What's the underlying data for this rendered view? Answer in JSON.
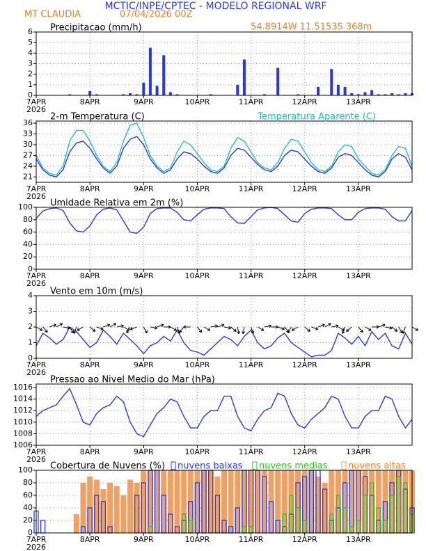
{
  "header": {
    "title": "MCTIC/INPE/CPTEC - MODELO REGIONAL WRF",
    "location": "MT CLAUDIA",
    "date": "07/04/2026 00Z",
    "coords": "54.8914W 11.5153S 368m"
  },
  "chart_data": [
    {
      "type": "bar",
      "title": "Precipitacao (mm/h)",
      "xtick_labels": [
        "7APR",
        "8APR",
        "9APR",
        "10APR",
        "11APR",
        "12APR",
        "13APR"
      ],
      "x_year": "2026",
      "ylim": [
        0,
        6
      ],
      "yticks": [
        0,
        1,
        2,
        3,
        4,
        5,
        6
      ],
      "grid": true,
      "series": [
        {
          "color": "#2838e8",
          "filled": true,
          "values": [
            0,
            0,
            0,
            0,
            0,
            0.1,
            0,
            0,
            0.4,
            0.1,
            0,
            0,
            0,
            0.1,
            0.2,
            0.1,
            1.2,
            4.5,
            0.9,
            3.8,
            0.3,
            0.1,
            0,
            0,
            0,
            0,
            0.1,
            0,
            0,
            0,
            1.0,
            3.4,
            0,
            0,
            0.1,
            0,
            2.6,
            0,
            0,
            0.1,
            0,
            0,
            0.8,
            0,
            2.5,
            1.0,
            0.8,
            0.2,
            0.1,
            0.3,
            0.5,
            0.1,
            0.1,
            0.2,
            0.1,
            0.2,
            0.2
          ]
        }
      ]
    },
    {
      "type": "line",
      "title": "2-m Temperatura (C)",
      "xtick_labels": [
        "7APR",
        "8APR",
        "9APR",
        "10APR",
        "11APR",
        "12APR",
        "13APR"
      ],
      "x_year": "2026",
      "ylim": [
        19.5,
        36.6
      ],
      "yticks": [
        21,
        24,
        27,
        30,
        33,
        36
      ],
      "grid": true,
      "series": [
        {
          "color": "#2838e8",
          "values": [
            26,
            23,
            21.5,
            21,
            23,
            28,
            30.5,
            31,
            29,
            26,
            23.5,
            22,
            24,
            29,
            31.5,
            32.3,
            30,
            26,
            23.5,
            22,
            23,
            26,
            28,
            27.5,
            26,
            24,
            22.5,
            22,
            23.5,
            27,
            29,
            28.5,
            26.5,
            24.5,
            23,
            22.5,
            24,
            27,
            28.5,
            28,
            26,
            24,
            22.5,
            22,
            23.5,
            26.5,
            27.5,
            27,
            25,
            23,
            21.5,
            21,
            22.5,
            26,
            27.5,
            26.5,
            23
          ]
        },
        {
          "name": "Temperatura Aparente (C)",
          "color": "#20c0c0",
          "values": [
            27,
            23.5,
            22,
            21.5,
            24,
            31,
            34,
            34,
            31,
            27,
            24,
            22.5,
            25,
            31,
            35.5,
            36,
            32,
            27,
            24,
            22.5,
            23.5,
            28,
            31,
            30,
            27.5,
            25,
            23,
            22.5,
            24,
            29,
            32,
            31,
            28,
            25,
            23.5,
            23,
            25,
            29,
            31.5,
            31,
            28,
            25,
            23,
            22.5,
            24,
            28,
            30,
            29.5,
            26,
            24,
            22,
            21.5,
            23,
            27,
            29.5,
            29,
            24
          ]
        }
      ]
    },
    {
      "type": "line",
      "title": "Umidade Relativa em 2m (%)",
      "xtick_labels": [
        "7APR",
        "8APR",
        "9APR",
        "10APR",
        "11APR",
        "12APR",
        "13APR"
      ],
      "x_year": "2026",
      "ylim": [
        0,
        100
      ],
      "yticks": [
        0,
        20,
        40,
        60,
        80,
        100
      ],
      "grid": true,
      "series": [
        {
          "color": "#2838e8",
          "values": [
            82,
            94,
            98,
            99,
            95,
            75,
            62,
            60,
            70,
            88,
            97,
            99,
            96,
            78,
            60,
            58,
            68,
            90,
            98,
            99,
            99,
            92,
            80,
            78,
            88,
            97,
            99,
            99,
            98,
            85,
            75,
            74,
            85,
            96,
            99,
            100,
            98,
            88,
            78,
            76,
            90,
            97,
            99,
            99,
            98,
            88,
            80,
            80,
            92,
            98,
            99,
            99,
            97,
            85,
            78,
            78,
            95
          ]
        }
      ]
    },
    {
      "type": "wind",
      "title": "Vento em 10m (m/s)",
      "xtick_labels": [
        "7APR",
        "8APR",
        "9APR",
        "10APR",
        "11APR",
        "12APR",
        "13APR"
      ],
      "x_year": "2026",
      "ylim": [
        0,
        4
      ],
      "yticks": [
        0,
        1,
        2,
        3,
        4
      ],
      "grid": true,
      "series": [
        {
          "color": "#2838e8",
          "values": [
            0.8,
            1.6,
            1.3,
            0.9,
            1.2,
            2.0,
            1.7,
            1.2,
            0.7,
            1.0,
            1.8,
            1.4,
            0.9,
            1.6,
            1.2,
            0.8,
            0.3,
            0.8,
            1.0,
            1.4,
            1.1,
            1.8,
            1.0,
            0.5,
            0.4,
            0.2,
            0.6,
            1.0,
            1.4,
            1.2,
            0.8,
            1.4,
            1.8,
            1.0,
            0.6,
            0.8,
            1.3,
            1.6,
            1.0,
            0.7,
            0.4,
            0.1,
            0.2,
            0.2,
            0.5,
            1.6,
            1.3,
            0.9,
            1.4,
            0.8,
            1.7,
            1.2,
            1.6,
            0.8,
            0.6,
            1.6,
            0.9
          ],
          "direction": [
            300,
            320,
            250,
            240,
            280,
            330,
            20,
            60,
            310,
            290,
            250,
            240,
            260,
            300,
            30,
            70,
            330,
            280,
            250,
            270,
            300,
            340,
            40,
            90,
            320,
            300,
            260,
            250,
            280,
            310,
            350,
            10,
            340,
            300,
            260,
            270,
            290,
            320,
            30,
            60,
            310,
            290,
            250,
            240,
            260,
            300,
            20,
            50,
            320,
            300,
            270,
            250,
            280,
            310,
            330,
            20,
            300
          ]
        }
      ]
    },
    {
      "type": "line",
      "title": "Pressao ao Nivel Medio do Mar (hPa)",
      "xtick_labels": [
        "7APR",
        "8APR",
        "9APR",
        "10APR",
        "11APR",
        "12APR",
        "13APR"
      ],
      "x_year": "2026",
      "ylim": [
        1006,
        1016.6
      ],
      "yticks": [
        1006,
        1008,
        1010,
        1012,
        1014,
        1016
      ],
      "grid": true,
      "series": [
        {
          "color": "#2838e8",
          "values": [
            1011,
            1012,
            1012.5,
            1013,
            1014.5,
            1015.8,
            1013,
            1010,
            1009.5,
            1011.5,
            1012.5,
            1013,
            1014.5,
            1013.5,
            1010,
            1008,
            1007.5,
            1009.5,
            1011.5,
            1012.5,
            1014,
            1013.5,
            1011,
            1009,
            1009,
            1011,
            1012,
            1012,
            1014.5,
            1014.5,
            1011,
            1009,
            1008.5,
            1010.5,
            1012,
            1012.5,
            1015,
            1014.5,
            1011.5,
            1009.5,
            1009,
            1010.5,
            1011.5,
            1012.5,
            1014.5,
            1014,
            1011,
            1009,
            1009,
            1011,
            1012,
            1012,
            1014.5,
            1014,
            1011,
            1009,
            1010.5
          ]
        }
      ]
    },
    {
      "type": "bar",
      "title": "Cobertura de Nuvens (%)",
      "xtick_labels": [
        "7APR",
        "8APR",
        "9APR",
        "10APR",
        "11APR",
        "12APR",
        "13APR"
      ],
      "x_year": "2026",
      "ylim": [
        0,
        100
      ],
      "yticks": [
        0,
        20,
        40,
        60,
        80,
        100
      ],
      "grid": true,
      "series": [
        {
          "name": "nuvens altas",
          "color": "#f0a060",
          "filled": true,
          "values": [
            0,
            0,
            0,
            0,
            0,
            0,
            30,
            80,
            90,
            85,
            70,
            80,
            75,
            60,
            85,
            80,
            100,
            100,
            100,
            100,
            100,
            100,
            100,
            100,
            100,
            100,
            100,
            90,
            100,
            100,
            100,
            100,
            100,
            100,
            100,
            100,
            100,
            100,
            100,
            100,
            100,
            100,
            90,
            80,
            100,
            100,
            100,
            100,
            100,
            100,
            100,
            100,
            100,
            100,
            100,
            100,
            100
          ]
        },
        {
          "name": "nuvens baixas",
          "color": "#2838e8",
          "filled": false,
          "values": [
            35,
            20,
            0,
            0,
            0,
            0,
            0,
            10,
            40,
            60,
            50,
            10,
            0,
            0,
            0,
            60,
            80,
            100,
            100,
            60,
            30,
            10,
            20,
            50,
            80,
            100,
            100,
            60,
            20,
            10,
            40,
            100,
            100,
            100,
            90,
            50,
            20,
            10,
            30,
            80,
            90,
            100,
            100,
            70,
            20,
            40,
            80,
            100,
            100,
            90,
            60,
            20,
            50,
            80,
            100,
            70,
            40
          ]
        },
        {
          "name": "nuvens medias",
          "color": "#30c020",
          "filled": false,
          "values": [
            0,
            0,
            0,
            0,
            0,
            0,
            0,
            0,
            0,
            0,
            0,
            0,
            0,
            0,
            0,
            0,
            0,
            10,
            0,
            0,
            0,
            0,
            30,
            20,
            0,
            0,
            0,
            0,
            0,
            0,
            0,
            10,
            10,
            0,
            0,
            0,
            0,
            30,
            60,
            40,
            20,
            0,
            0,
            0,
            30,
            60,
            40,
            10,
            20,
            60,
            80,
            40,
            20,
            60,
            90,
            80,
            30
          ]
        }
      ]
    }
  ]
}
